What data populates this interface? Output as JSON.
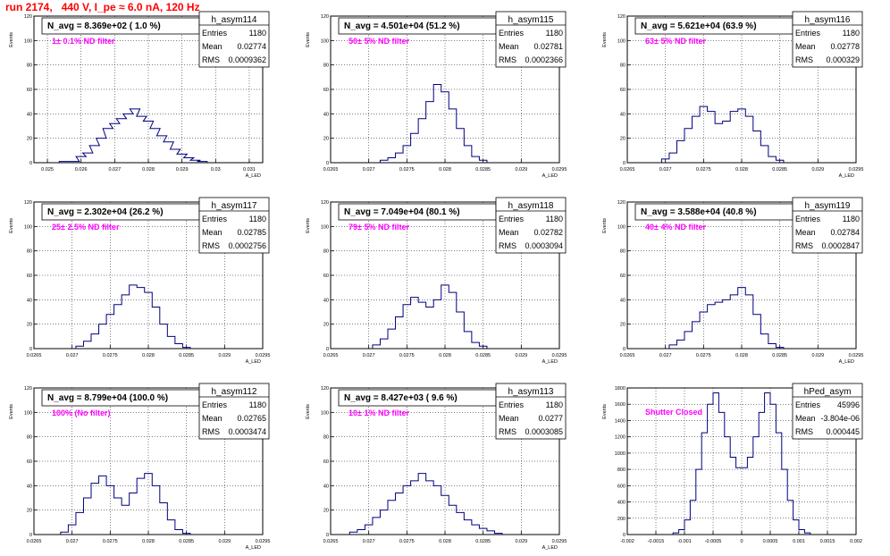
{
  "page": {
    "title": "run 2174,   440 V, I_pe ≈ 6.0 nA, 120 Hz",
    "colors": {
      "title": "#ff0000",
      "histogram": "#000080",
      "annotation": "#ff00ff",
      "grid": "#000000"
    }
  },
  "chart_data": [
    {
      "type": "histogram",
      "name": "h_asym114",
      "header": "N_avg = 8.369e+02 ( 1.0 %)",
      "annotation": "1± 0.1% ND filter",
      "stats": {
        "Entries": "1180",
        "Mean": "0.02774",
        "RMS": "0.0009362"
      },
      "ylabel": "Events",
      "xlabel": "A_LED",
      "xlim": [
        0.0246,
        0.0314
      ],
      "ylim": [
        0,
        120
      ],
      "xticks": [
        "0.025",
        "0.026",
        "0.027",
        "0.028",
        "0.029",
        "0.03",
        "0.031"
      ],
      "xtick_values": [
        0.025,
        0.026,
        0.027,
        0.028,
        0.029,
        0.03,
        0.031
      ],
      "yticks": [
        0,
        20,
        40,
        60,
        80,
        100,
        120
      ],
      "bins": [
        [
          0.0255,
          1
        ],
        [
          0.0258,
          1
        ],
        [
          0.026,
          5
        ],
        [
          0.0262,
          8
        ],
        [
          0.0264,
          14
        ],
        [
          0.0266,
          20
        ],
        [
          0.0268,
          28
        ],
        [
          0.027,
          32
        ],
        [
          0.0272,
          36
        ],
        [
          0.0274,
          40
        ],
        [
          0.0276,
          44
        ],
        [
          0.0278,
          38
        ],
        [
          0.028,
          34
        ],
        [
          0.0282,
          28
        ],
        [
          0.0284,
          22
        ],
        [
          0.0286,
          17
        ],
        [
          0.0288,
          11
        ],
        [
          0.029,
          7
        ],
        [
          0.0292,
          4
        ],
        [
          0.0294,
          2
        ],
        [
          0.0296,
          1
        ]
      ]
    },
    {
      "type": "histogram",
      "name": "h_asym115",
      "header": "N_avg = 4.501e+04 (51.2 %)",
      "annotation": "50± 5% ND filter",
      "stats": {
        "Entries": "1180",
        "Mean": "0.02781",
        "RMS": "0.0002366"
      },
      "ylabel": "Events",
      "xlabel": "A_LED",
      "xlim": [
        0.0265,
        0.0295
      ],
      "ylim": [
        0,
        120
      ],
      "xticks": [
        "0.0265",
        "0.027",
        "0.0275",
        "0.028",
        "0.0285",
        "0.029",
        "0.0295"
      ],
      "xtick_values": [
        0.0265,
        0.027,
        0.0275,
        0.028,
        0.0285,
        0.029,
        0.0295
      ],
      "yticks": [
        0,
        20,
        40,
        60,
        80,
        100,
        120
      ],
      "bins": [
        [
          0.0272,
          2
        ],
        [
          0.0273,
          4
        ],
        [
          0.0274,
          8
        ],
        [
          0.0275,
          14
        ],
        [
          0.0276,
          24
        ],
        [
          0.0277,
          36
        ],
        [
          0.0278,
          50
        ],
        [
          0.0279,
          64
        ],
        [
          0.028,
          58
        ],
        [
          0.0281,
          44
        ],
        [
          0.0282,
          28
        ],
        [
          0.0283,
          14
        ],
        [
          0.0284,
          5
        ],
        [
          0.0285,
          2
        ]
      ]
    },
    {
      "type": "histogram",
      "name": "h_asym116",
      "header": "N_avg = 5.621e+04 (63.9 %)",
      "annotation": "63± 5% ND filter",
      "stats": {
        "Entries": "1180",
        "Mean": "0.02778",
        "RMS": "0.000329"
      },
      "ylabel": "Events",
      "xlabel": "A_LED",
      "xlim": [
        0.0265,
        0.0295
      ],
      "ylim": [
        0,
        120
      ],
      "xticks": [
        "0.0265",
        "0.027",
        "0.0275",
        "0.028",
        "0.0285",
        "0.029",
        "0.0295"
      ],
      "xtick_values": [
        0.0265,
        0.027,
        0.0275,
        0.028,
        0.0285,
        0.029,
        0.0295
      ],
      "yticks": [
        0,
        20,
        40,
        60,
        80,
        100,
        120
      ],
      "bins": [
        [
          0.027,
          3
        ],
        [
          0.0271,
          8
        ],
        [
          0.0272,
          18
        ],
        [
          0.0273,
          28
        ],
        [
          0.0274,
          38
        ],
        [
          0.0275,
          46
        ],
        [
          0.0276,
          42
        ],
        [
          0.0277,
          32
        ],
        [
          0.0278,
          34
        ],
        [
          0.0279,
          42
        ],
        [
          0.028,
          44
        ],
        [
          0.0281,
          38
        ],
        [
          0.0282,
          26
        ],
        [
          0.0283,
          14
        ],
        [
          0.0284,
          5
        ],
        [
          0.0285,
          2
        ]
      ]
    },
    {
      "type": "histogram",
      "name": "h_asym117",
      "header": "N_avg = 2.302e+04 (26.2 %)",
      "annotation": "25± 2.5% ND filter",
      "stats": {
        "Entries": "1180",
        "Mean": "0.02785",
        "RMS": "0.0002756"
      },
      "ylabel": "Events",
      "xlabel": "A_LED",
      "xlim": [
        0.0265,
        0.0295
      ],
      "ylim": [
        0,
        120
      ],
      "xticks": [
        "0.0265",
        "0.027",
        "0.0275",
        "0.028",
        "0.0285",
        "0.029",
        "0.0295"
      ],
      "xtick_values": [
        0.0265,
        0.027,
        0.0275,
        0.028,
        0.0285,
        0.029,
        0.0295
      ],
      "yticks": [
        0,
        20,
        40,
        60,
        80,
        100,
        120
      ],
      "bins": [
        [
          0.0271,
          2
        ],
        [
          0.0272,
          6
        ],
        [
          0.0273,
          12
        ],
        [
          0.0274,
          20
        ],
        [
          0.0275,
          28
        ],
        [
          0.0276,
          36
        ],
        [
          0.0277,
          44
        ],
        [
          0.0278,
          52
        ],
        [
          0.0279,
          50
        ],
        [
          0.028,
          46
        ],
        [
          0.0281,
          34
        ],
        [
          0.0282,
          20
        ],
        [
          0.0283,
          10
        ],
        [
          0.0284,
          4
        ],
        [
          0.0285,
          1
        ]
      ]
    },
    {
      "type": "histogram",
      "name": "h_asym118",
      "header": "N_avg = 7.049e+04 (80.1 %)",
      "annotation": "79± 5% ND filter",
      "stats": {
        "Entries": "1180",
        "Mean": "0.02782",
        "RMS": "0.0003094"
      },
      "ylabel": "Events",
      "xlabel": "A_LED",
      "xlim": [
        0.0265,
        0.0295
      ],
      "ylim": [
        0,
        120
      ],
      "xticks": [
        "0.0265",
        "0.027",
        "0.0275",
        "0.028",
        "0.0285",
        "0.029",
        "0.0295"
      ],
      "xtick_values": [
        0.0265,
        0.027,
        0.0275,
        0.028,
        0.0285,
        0.029,
        0.0295
      ],
      "yticks": [
        0,
        20,
        40,
        60,
        80,
        100,
        120
      ],
      "bins": [
        [
          0.0271,
          3
        ],
        [
          0.0272,
          8
        ],
        [
          0.0273,
          16
        ],
        [
          0.0274,
          26
        ],
        [
          0.0275,
          36
        ],
        [
          0.0276,
          42
        ],
        [
          0.0277,
          38
        ],
        [
          0.0278,
          34
        ],
        [
          0.0279,
          40
        ],
        [
          0.028,
          52
        ],
        [
          0.0281,
          46
        ],
        [
          0.0282,
          30
        ],
        [
          0.0283,
          14
        ],
        [
          0.0284,
          5
        ],
        [
          0.0285,
          2
        ]
      ]
    },
    {
      "type": "histogram",
      "name": "h_asym119",
      "header": "N_avg = 3.588e+04 (40.8 %)",
      "annotation": "40± 4% ND filter",
      "stats": {
        "Entries": "1180",
        "Mean": "0.02784",
        "RMS": "0.0002847"
      },
      "ylabel": "Events",
      "xlabel": "A_LED",
      "xlim": [
        0.0265,
        0.0295
      ],
      "ylim": [
        0,
        120
      ],
      "xticks": [
        "0.0265",
        "0.027",
        "0.0275",
        "0.028",
        "0.0285",
        "0.029",
        "0.0295"
      ],
      "xtick_values": [
        0.0265,
        0.027,
        0.0275,
        0.028,
        0.0285,
        0.029,
        0.0295
      ],
      "yticks": [
        0,
        20,
        40,
        60,
        80,
        100,
        120
      ],
      "bins": [
        [
          0.0271,
          3
        ],
        [
          0.0272,
          7
        ],
        [
          0.0273,
          14
        ],
        [
          0.0274,
          22
        ],
        [
          0.0275,
          30
        ],
        [
          0.0276,
          36
        ],
        [
          0.0277,
          38
        ],
        [
          0.0278,
          40
        ],
        [
          0.0279,
          44
        ],
        [
          0.028,
          50
        ],
        [
          0.0281,
          44
        ],
        [
          0.0282,
          28
        ],
        [
          0.0283,
          12
        ],
        [
          0.0284,
          4
        ],
        [
          0.0285,
          1
        ]
      ]
    },
    {
      "type": "histogram",
      "name": "h_asym112",
      "header": "N_avg = 8.799e+04 (100.0 %)",
      "annotation": "100% (No filter)",
      "stats": {
        "Entries": "1180",
        "Mean": "0.02765",
        "RMS": "0.0003474"
      },
      "ylabel": "Events",
      "xlabel": "A_LED",
      "xlim": [
        0.0265,
        0.0295
      ],
      "ylim": [
        0,
        120
      ],
      "xticks": [
        "0.0265",
        "0.027",
        "0.0275",
        "0.028",
        "0.0285",
        "0.029",
        "0.0295"
      ],
      "xtick_values": [
        0.0265,
        0.027,
        0.0275,
        0.028,
        0.0285,
        0.029,
        0.0295
      ],
      "yticks": [
        0,
        20,
        40,
        60,
        80,
        100,
        120
      ],
      "bins": [
        [
          0.0269,
          2
        ],
        [
          0.027,
          8
        ],
        [
          0.0271,
          18
        ],
        [
          0.0272,
          30
        ],
        [
          0.0273,
          42
        ],
        [
          0.0274,
          48
        ],
        [
          0.0275,
          40
        ],
        [
          0.0276,
          30
        ],
        [
          0.0277,
          24
        ],
        [
          0.0278,
          34
        ],
        [
          0.0279,
          46
        ],
        [
          0.028,
          50
        ],
        [
          0.0281,
          40
        ],
        [
          0.0282,
          26
        ],
        [
          0.0283,
          12
        ],
        [
          0.0284,
          4
        ],
        [
          0.0285,
          1
        ]
      ]
    },
    {
      "type": "histogram",
      "name": "h_asym113",
      "header": "N_avg = 8.427e+03 ( 9.6 %)",
      "annotation": "10± 1% ND filter",
      "stats": {
        "Entries": "1180",
        "Mean": "0.0277",
        "RMS": "0.0003085"
      },
      "ylabel": "Events",
      "xlabel": "A_LED",
      "xlim": [
        0.0265,
        0.0295
      ],
      "ylim": [
        0,
        120
      ],
      "xticks": [
        "0.0265",
        "0.027",
        "0.0275",
        "0.028",
        "0.0285",
        "0.029",
        "0.0295"
      ],
      "xtick_values": [
        0.0265,
        0.027,
        0.0275,
        0.028,
        0.0285,
        0.029,
        0.0295
      ],
      "yticks": [
        0,
        20,
        40,
        60,
        80,
        100,
        120
      ],
      "bins": [
        [
          0.0268,
          2
        ],
        [
          0.0269,
          4
        ],
        [
          0.027,
          8
        ],
        [
          0.0271,
          14
        ],
        [
          0.0272,
          20
        ],
        [
          0.0273,
          28
        ],
        [
          0.0274,
          34
        ],
        [
          0.0275,
          40
        ],
        [
          0.0276,
          44
        ],
        [
          0.0277,
          50
        ],
        [
          0.0278,
          44
        ],
        [
          0.0279,
          40
        ],
        [
          0.028,
          32
        ],
        [
          0.0281,
          24
        ],
        [
          0.0282,
          18
        ],
        [
          0.0283,
          12
        ],
        [
          0.0284,
          8
        ],
        [
          0.0285,
          5
        ],
        [
          0.0286,
          3
        ],
        [
          0.0287,
          1
        ]
      ]
    },
    {
      "type": "histogram",
      "name": "hPed_asym",
      "header": "",
      "annotation": "Shutter Closed",
      "stats": {
        "Entries": "45996",
        "Mean": "-3.804e-06",
        "RMS": "0.000445"
      },
      "ylabel": "Events",
      "xlabel": "",
      "xlim": [
        -0.002,
        0.002
      ],
      "ylim": [
        0,
        1800
      ],
      "xticks": [
        "-0.002",
        "-0.0015",
        "-0.001",
        "-0.0005",
        "0",
        "0.0005",
        "0.001",
        "0.0015",
        "0.002"
      ],
      "xtick_values": [
        -0.002,
        -0.0015,
        -0.001,
        -0.0005,
        0,
        0.0005,
        0.001,
        0.0015,
        0.002
      ],
      "yticks": [
        0,
        200,
        400,
        600,
        800,
        1000,
        1200,
        1400,
        1600,
        1800
      ],
      "bins": [
        [
          -0.00115,
          20
        ],
        [
          -0.00105,
          60
        ],
        [
          -0.00095,
          180
        ],
        [
          -0.00085,
          420
        ],
        [
          -0.00075,
          800
        ],
        [
          -0.00065,
          1250
        ],
        [
          -0.00055,
          1600
        ],
        [
          -0.00045,
          1740
        ],
        [
          -0.00035,
          1500
        ],
        [
          -0.00025,
          1200
        ],
        [
          -0.00015,
          950
        ],
        [
          -5e-05,
          820
        ],
        [
          5e-05,
          820
        ],
        [
          0.00015,
          950
        ],
        [
          0.00025,
          1200
        ],
        [
          0.00035,
          1500
        ],
        [
          0.00045,
          1740
        ],
        [
          0.00055,
          1600
        ],
        [
          0.00065,
          1250
        ],
        [
          0.00075,
          800
        ],
        [
          0.00085,
          420
        ],
        [
          0.00095,
          180
        ],
        [
          0.00105,
          60
        ],
        [
          0.00115,
          20
        ]
      ]
    }
  ]
}
